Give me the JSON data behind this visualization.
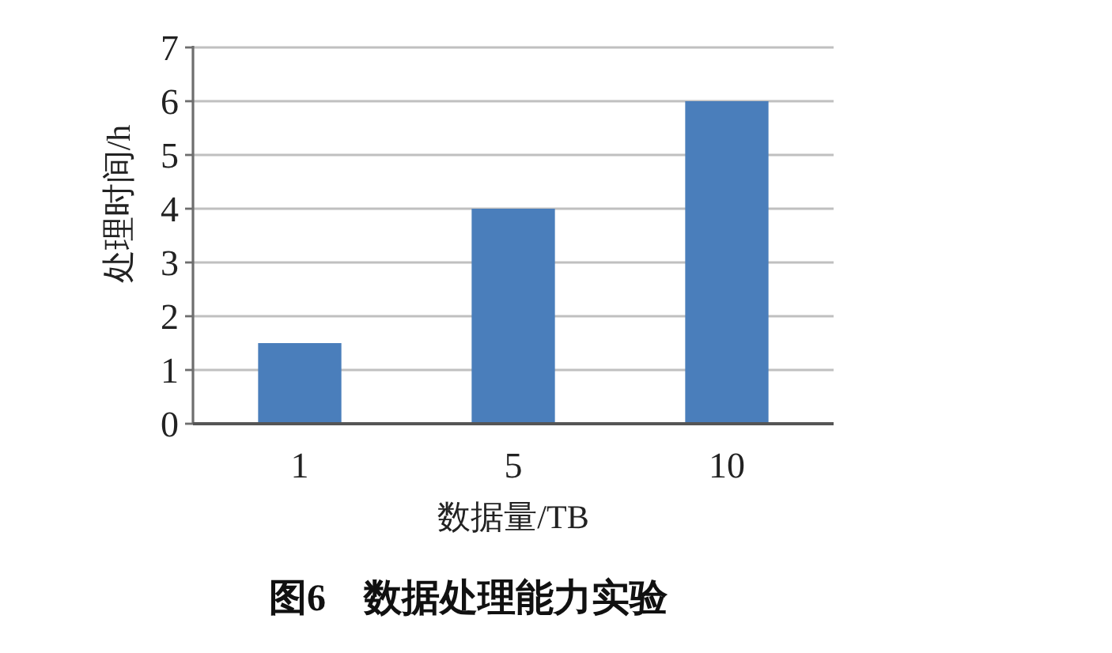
{
  "chart_data": {
    "type": "bar",
    "title": "图6　数据处理能力实验",
    "xlabel": "数据量/TB",
    "ylabel": "处理时间/h",
    "categories": [
      "1",
      "5",
      "10"
    ],
    "values": [
      1.5,
      4,
      6
    ],
    "color": "#4a7ebb",
    "ylim": [
      0,
      7
    ],
    "yticks": [
      0,
      1,
      2,
      3,
      4,
      5,
      6,
      7
    ],
    "grid": "y"
  }
}
